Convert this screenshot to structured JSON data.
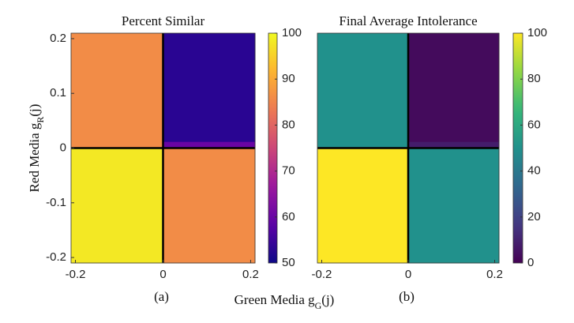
{
  "chart_data": [
    {
      "type": "heatmap",
      "title": "Percent Similar",
      "ylabel": "Red Media g_R(j)",
      "xlabel": "Green Media g_G(j)",
      "panel_label": "(a)",
      "x": [
        -0.21,
        0,
        0.21
      ],
      "y": [
        -0.21,
        0,
        0.012,
        0.21
      ],
      "values": [
        [
          98,
          86
        ],
        [
          86,
          60
        ],
        [
          86,
          53
        ]
      ],
      "xlim": [
        -0.21,
        0.21
      ],
      "ylim": [
        -0.21,
        0.21
      ],
      "xticks": [
        -0.2,
        0,
        0.2
      ],
      "yticks": [
        -0.2,
        -0.1,
        0,
        0.1,
        0.2
      ],
      "vlines": [
        0
      ],
      "hlines": [
        0
      ],
      "colormap": "plasma",
      "clim": [
        50,
        100
      ],
      "cticks": [
        50,
        60,
        70,
        80,
        90,
        100
      ]
    },
    {
      "type": "heatmap",
      "title": "Final Average Intolerance",
      "panel_label": "(b)",
      "x": [
        -0.21,
        0,
        0.21
      ],
      "y": [
        -0.21,
        0,
        0.012,
        0.21
      ],
      "values": [
        [
          100,
          50
        ],
        [
          50,
          8
        ],
        [
          50,
          3
        ]
      ],
      "xlim": [
        -0.21,
        0.21
      ],
      "ylim": [
        -0.21,
        0.21
      ],
      "xticks": [
        -0.2,
        0,
        0.2
      ],
      "vlines": [
        0
      ],
      "hlines": [
        0
      ],
      "colormap": "viridis",
      "clim": [
        0,
        100
      ],
      "cticks": [
        0,
        20,
        40,
        60,
        80,
        100
      ]
    }
  ]
}
